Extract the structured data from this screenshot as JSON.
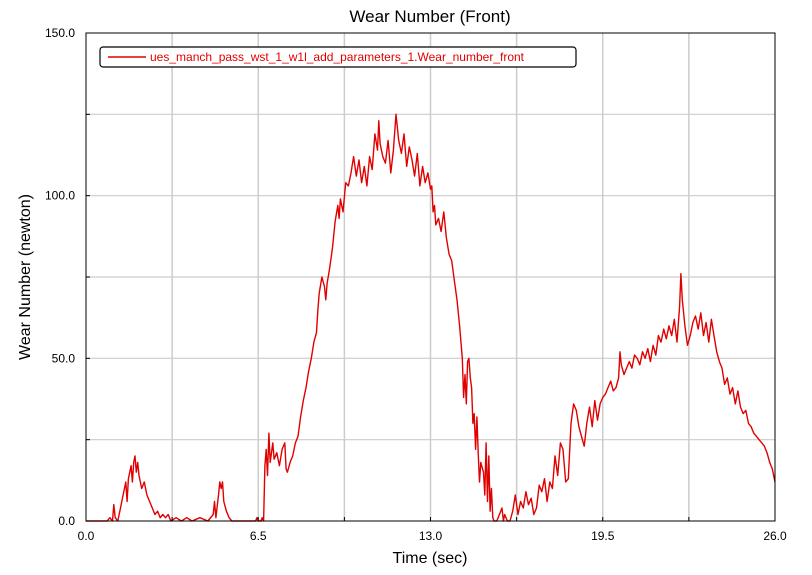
{
  "chart_data": {
    "type": "line",
    "title": "Wear Number (Front)",
    "xlabel": "Time (sec)",
    "ylabel": "Wear Number (newton)",
    "xlim": [
      0,
      26
    ],
    "ylim": [
      0,
      150
    ],
    "x_ticks": [
      0,
      6.5,
      13,
      19.5,
      26
    ],
    "x_tick_labels": [
      "0.0",
      "6.5",
      "13.0",
      "19.5",
      "26.0"
    ],
    "y_ticks": [
      0,
      50,
      100,
      150
    ],
    "y_tick_labels": [
      "0.0",
      "50.0",
      "100.0",
      "150.0"
    ],
    "x_grid": [
      3.25,
      6.5,
      9.75,
      13,
      16.25,
      19.5,
      22.75
    ],
    "y_grid": [
      25,
      50,
      75,
      100,
      125
    ],
    "grid": true,
    "legend_position": "top-left",
    "colors": {
      "series": "#e00000",
      "grid": "#cccccc",
      "axis": "#000000",
      "legend_border": "#000000"
    },
    "series": [
      {
        "name": "ues_manch_pass_wst_1_w1l_add_parameters_1.Wear_number_front",
        "points": [
          [
            0,
            0
          ],
          [
            0.8,
            0
          ],
          [
            0.9,
            1
          ],
          [
            1.0,
            0
          ],
          [
            1.05,
            5
          ],
          [
            1.1,
            1
          ],
          [
            1.2,
            0
          ],
          [
            1.3,
            4
          ],
          [
            1.4,
            8
          ],
          [
            1.5,
            12
          ],
          [
            1.55,
            6
          ],
          [
            1.6,
            13
          ],
          [
            1.7,
            17
          ],
          [
            1.75,
            12
          ],
          [
            1.8,
            18
          ],
          [
            1.85,
            20
          ],
          [
            1.9,
            15
          ],
          [
            1.95,
            18
          ],
          [
            2.0,
            14
          ],
          [
            2.1,
            10
          ],
          [
            2.2,
            12
          ],
          [
            2.3,
            8
          ],
          [
            2.4,
            6
          ],
          [
            2.5,
            4
          ],
          [
            2.6,
            2
          ],
          [
            2.7,
            3
          ],
          [
            2.8,
            1
          ],
          [
            2.9,
            2
          ],
          [
            3.0,
            1
          ],
          [
            3.1,
            2
          ],
          [
            3.2,
            0
          ],
          [
            3.4,
            1
          ],
          [
            3.6,
            0
          ],
          [
            3.8,
            1
          ],
          [
            4.0,
            0
          ],
          [
            4.3,
            1
          ],
          [
            4.6,
            0
          ],
          [
            4.8,
            2
          ],
          [
            4.85,
            6
          ],
          [
            4.9,
            1
          ],
          [
            5.0,
            8
          ],
          [
            5.05,
            12
          ],
          [
            5.1,
            10
          ],
          [
            5.15,
            12
          ],
          [
            5.2,
            6
          ],
          [
            5.3,
            3
          ],
          [
            5.4,
            1
          ],
          [
            5.5,
            0
          ],
          [
            6.4,
            0
          ],
          [
            6.45,
            1
          ],
          [
            6.5,
            0
          ],
          [
            6.6,
            0
          ],
          [
            6.65,
            1
          ],
          [
            6.7,
            0
          ],
          [
            6.75,
            17
          ],
          [
            6.8,
            22
          ],
          [
            6.85,
            14
          ],
          [
            6.9,
            27
          ],
          [
            6.95,
            18
          ],
          [
            7.0,
            21
          ],
          [
            7.05,
            24
          ],
          [
            7.1,
            19
          ],
          [
            7.2,
            21
          ],
          [
            7.3,
            17
          ],
          [
            7.4,
            22
          ],
          [
            7.5,
            24
          ],
          [
            7.55,
            16
          ],
          [
            7.6,
            15
          ],
          [
            7.7,
            18
          ],
          [
            7.8,
            20
          ],
          [
            7.9,
            24
          ],
          [
            8.0,
            26
          ],
          [
            8.1,
            32
          ],
          [
            8.2,
            37
          ],
          [
            8.3,
            41
          ],
          [
            8.4,
            46
          ],
          [
            8.5,
            50
          ],
          [
            8.6,
            55
          ],
          [
            8.7,
            58
          ],
          [
            8.75,
            65
          ],
          [
            8.8,
            70
          ],
          [
            8.9,
            75
          ],
          [
            9.0,
            72
          ],
          [
            9.05,
            68
          ],
          [
            9.1,
            73
          ],
          [
            9.2,
            78
          ],
          [
            9.3,
            84
          ],
          [
            9.4,
            92
          ],
          [
            9.5,
            97
          ],
          [
            9.55,
            93
          ],
          [
            9.6,
            99
          ],
          [
            9.7,
            95
          ],
          [
            9.8,
            104
          ],
          [
            9.9,
            103
          ],
          [
            10.0,
            107
          ],
          [
            10.1,
            112
          ],
          [
            10.2,
            106
          ],
          [
            10.3,
            111
          ],
          [
            10.4,
            104
          ],
          [
            10.5,
            109
          ],
          [
            10.6,
            103
          ],
          [
            10.7,
            112
          ],
          [
            10.8,
            108
          ],
          [
            10.9,
            119
          ],
          [
            11.0,
            114
          ],
          [
            11.05,
            123
          ],
          [
            11.1,
            116
          ],
          [
            11.2,
            112
          ],
          [
            11.3,
            110
          ],
          [
            11.4,
            117
          ],
          [
            11.5,
            107
          ],
          [
            11.6,
            114
          ],
          [
            11.7,
            125
          ],
          [
            11.8,
            117
          ],
          [
            11.9,
            113
          ],
          [
            12.0,
            119
          ],
          [
            12.1,
            109
          ],
          [
            12.2,
            115
          ],
          [
            12.3,
            111
          ],
          [
            12.4,
            106
          ],
          [
            12.5,
            113
          ],
          [
            12.6,
            103
          ],
          [
            12.7,
            109
          ],
          [
            12.8,
            104
          ],
          [
            12.9,
            107
          ],
          [
            13.0,
            102
          ],
          [
            13.05,
            103
          ],
          [
            13.1,
            95
          ],
          [
            13.15,
            97
          ],
          [
            13.2,
            91
          ],
          [
            13.3,
            93
          ],
          [
            13.4,
            89
          ],
          [
            13.5,
            95
          ],
          [
            13.6,
            87
          ],
          [
            13.7,
            82
          ],
          [
            13.8,
            80
          ],
          [
            13.9,
            74
          ],
          [
            14.0,
            68
          ],
          [
            14.1,
            60
          ],
          [
            14.2,
            50
          ],
          [
            14.25,
            38
          ],
          [
            14.3,
            45
          ],
          [
            14.35,
            36
          ],
          [
            14.4,
            49
          ],
          [
            14.45,
            50
          ],
          [
            14.5,
            44
          ],
          [
            14.55,
            41
          ],
          [
            14.6,
            30
          ],
          [
            14.65,
            33
          ],
          [
            14.7,
            22
          ],
          [
            14.75,
            32
          ],
          [
            14.8,
            21
          ],
          [
            14.85,
            12
          ],
          [
            14.9,
            18
          ],
          [
            15.0,
            15
          ],
          [
            15.05,
            8
          ],
          [
            15.1,
            24
          ],
          [
            15.15,
            6
          ],
          [
            15.2,
            20
          ],
          [
            15.25,
            3
          ],
          [
            15.3,
            10
          ],
          [
            15.35,
            1
          ],
          [
            15.4,
            0
          ],
          [
            15.5,
            0
          ],
          [
            15.6,
            2
          ],
          [
            15.7,
            4
          ],
          [
            15.75,
            0
          ],
          [
            15.8,
            2
          ],
          [
            15.9,
            0
          ],
          [
            16.0,
            0
          ],
          [
            16.1,
            3
          ],
          [
            16.2,
            8
          ],
          [
            16.3,
            2
          ],
          [
            16.4,
            6
          ],
          [
            16.5,
            4
          ],
          [
            16.6,
            9
          ],
          [
            16.7,
            5
          ],
          [
            16.8,
            7
          ],
          [
            16.9,
            2
          ],
          [
            17.0,
            4
          ],
          [
            17.1,
            11
          ],
          [
            17.2,
            9
          ],
          [
            17.3,
            13
          ],
          [
            17.4,
            6
          ],
          [
            17.5,
            12
          ],
          [
            17.6,
            10
          ],
          [
            17.7,
            20
          ],
          [
            17.8,
            14
          ],
          [
            17.9,
            24
          ],
          [
            18.0,
            22
          ],
          [
            18.1,
            12
          ],
          [
            18.2,
            13
          ],
          [
            18.3,
            30
          ],
          [
            18.4,
            36
          ],
          [
            18.5,
            34
          ],
          [
            18.6,
            29
          ],
          [
            18.7,
            26
          ],
          [
            18.8,
            23
          ],
          [
            18.9,
            30
          ],
          [
            19.0,
            35
          ],
          [
            19.1,
            29
          ],
          [
            19.2,
            37
          ],
          [
            19.3,
            31
          ],
          [
            19.4,
            36
          ],
          [
            19.5,
            38
          ],
          [
            19.6,
            39
          ],
          [
            19.7,
            41
          ],
          [
            19.8,
            43
          ],
          [
            19.9,
            40
          ],
          [
            20.0,
            41
          ],
          [
            20.1,
            44
          ],
          [
            20.15,
            52
          ],
          [
            20.2,
            48
          ],
          [
            20.3,
            45
          ],
          [
            20.4,
            47
          ],
          [
            20.5,
            49
          ],
          [
            20.6,
            47
          ],
          [
            20.7,
            51
          ],
          [
            20.8,
            50
          ],
          [
            20.9,
            48
          ],
          [
            21.0,
            52
          ],
          [
            21.1,
            50
          ],
          [
            21.2,
            53
          ],
          [
            21.3,
            49
          ],
          [
            21.4,
            54
          ],
          [
            21.5,
            51
          ],
          [
            21.6,
            57
          ],
          [
            21.7,
            55
          ],
          [
            21.8,
            59
          ],
          [
            21.9,
            56
          ],
          [
            22.0,
            60
          ],
          [
            22.1,
            57
          ],
          [
            22.2,
            62
          ],
          [
            22.3,
            55
          ],
          [
            22.4,
            66
          ],
          [
            22.45,
            76
          ],
          [
            22.5,
            68
          ],
          [
            22.6,
            60
          ],
          [
            22.7,
            54
          ],
          [
            22.8,
            57
          ],
          [
            22.9,
            61
          ],
          [
            23.0,
            63
          ],
          [
            23.1,
            59
          ],
          [
            23.2,
            64
          ],
          [
            23.3,
            57
          ],
          [
            23.4,
            61
          ],
          [
            23.5,
            55
          ],
          [
            23.6,
            62
          ],
          [
            23.7,
            57
          ],
          [
            23.8,
            52
          ],
          [
            23.9,
            49
          ],
          [
            24.0,
            47
          ],
          [
            24.1,
            42
          ],
          [
            24.2,
            44
          ],
          [
            24.3,
            39
          ],
          [
            24.4,
            41
          ],
          [
            24.5,
            36
          ],
          [
            24.6,
            40
          ],
          [
            24.7,
            35
          ],
          [
            24.8,
            33
          ],
          [
            24.9,
            34
          ],
          [
            25.0,
            30
          ],
          [
            25.1,
            29
          ],
          [
            25.2,
            27
          ],
          [
            25.3,
            26
          ],
          [
            25.4,
            25
          ],
          [
            25.5,
            24
          ],
          [
            25.6,
            23
          ],
          [
            25.7,
            21
          ],
          [
            25.8,
            18
          ],
          [
            25.9,
            16
          ],
          [
            26.0,
            12
          ]
        ]
      }
    ]
  }
}
